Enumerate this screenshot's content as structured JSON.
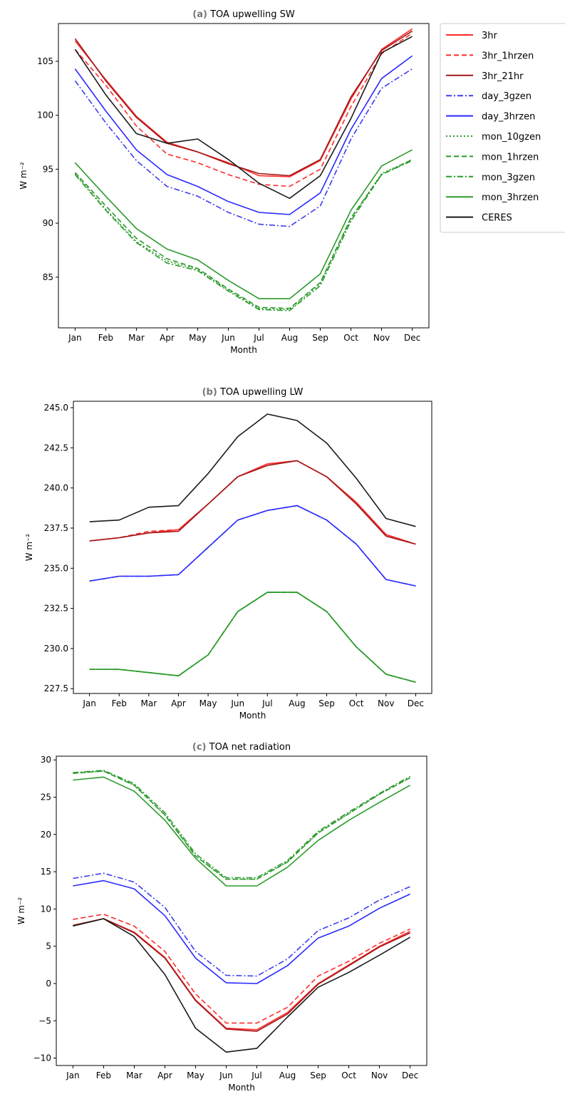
{
  "chart_data": [
    {
      "type": "line",
      "title_prefix": "(a)",
      "title": "TOA upwelling SW",
      "xlabel": "Month",
      "ylabel": "W m⁻²",
      "categories": [
        "Jan",
        "Feb",
        "Mar",
        "Apr",
        "May",
        "Jun",
        "Jul",
        "Aug",
        "Sep",
        "Oct",
        "Nov",
        "Dec"
      ],
      "ylim": [
        80.3,
        108.5
      ],
      "yticks": [
        85,
        90,
        95,
        100,
        105
      ],
      "yticklabels": [
        "85",
        "90",
        "95",
        "100",
        "105"
      ],
      "grid": false,
      "legend": {
        "placement": "outside-right",
        "entries": [
          "3hr",
          "3hr_1hrzen",
          "3hr_21hr",
          "day_3gzen",
          "day_3hrzen",
          "mon_10gzen",
          "mon_1hrzen",
          "mon_3gzen",
          "mon_3hrzen",
          "CERES"
        ]
      },
      "series": [
        {
          "name": "3hr",
          "color": "#ff2a2a",
          "dash": "solid",
          "values": [
            106.9,
            103.3,
            99.9,
            97.5,
            96.6,
            95.6,
            94.4,
            94.3,
            95.8,
            101.5,
            106.1,
            108.0
          ]
        },
        {
          "name": "3hr_1hrzen",
          "color": "#ff2a2a",
          "dash": "dashed",
          "values": [
            106.1,
            102.8,
            99.0,
            96.4,
            95.6,
            94.5,
            93.6,
            93.4,
            95.0,
            100.8,
            105.7,
            107.6
          ]
        },
        {
          "name": "3hr_21hr",
          "color": "#a01818",
          "dash": "solid",
          "values": [
            107.1,
            103.2,
            99.8,
            97.4,
            96.6,
            95.5,
            94.6,
            94.4,
            95.9,
            101.7,
            106.0,
            107.8
          ]
        },
        {
          "name": "day_3gzen",
          "color": "#3c3cf0",
          "dash": "dashdot",
          "values": [
            103.2,
            99.3,
            95.8,
            93.4,
            92.5,
            91.0,
            89.9,
            89.7,
            91.6,
            97.8,
            102.5,
            104.3
          ]
        },
        {
          "name": "day_3hrzen",
          "color": "#2a2aff",
          "dash": "solid",
          "values": [
            104.3,
            100.4,
            96.8,
            94.5,
            93.4,
            92.0,
            91.0,
            90.8,
            92.8,
            98.7,
            103.4,
            105.5
          ]
        },
        {
          "name": "mon_10gzen",
          "color": "#2a9a2a",
          "dash": "dotted",
          "values": [
            94.6,
            91.3,
            88.3,
            86.5,
            85.7,
            83.8,
            82.1,
            82.0,
            84.4,
            90.4,
            94.6,
            95.9
          ]
        },
        {
          "name": "mon_1hrzen",
          "color": "#2a9a2a",
          "dash": "dashed",
          "values": [
            94.7,
            91.6,
            88.6,
            86.7,
            85.8,
            83.9,
            82.2,
            82.1,
            84.5,
            90.5,
            94.5,
            95.9
          ]
        },
        {
          "name": "mon_3gzen",
          "color": "#2a9a2a",
          "dash": "dashdot",
          "values": [
            94.5,
            91.2,
            88.2,
            86.3,
            85.6,
            83.7,
            82.0,
            81.9,
            84.2,
            90.2,
            94.5,
            95.8
          ]
        },
        {
          "name": "mon_3hrzen",
          "color": "#2a9a2a",
          "dash": "solid",
          "values": [
            95.6,
            92.5,
            89.5,
            87.6,
            86.6,
            84.7,
            83.0,
            83.0,
            85.3,
            91.2,
            95.3,
            96.8
          ]
        },
        {
          "name": "CERES",
          "color": "#1a1a1a",
          "dash": "solid",
          "values": [
            106.1,
            101.9,
            98.3,
            97.4,
            97.8,
            95.9,
            93.7,
            92.3,
            94.4,
            99.7,
            105.8,
            107.3
          ]
        }
      ]
    },
    {
      "type": "line",
      "title_prefix": "(b)",
      "title": "TOA upwelling LW",
      "xlabel": "Month",
      "ylabel": "W m⁻²",
      "categories": [
        "Jan",
        "Feb",
        "Mar",
        "Apr",
        "May",
        "Jun",
        "Jul",
        "Aug",
        "Sep",
        "Oct",
        "Nov",
        "Dec"
      ],
      "ylim": [
        227.2,
        245.4
      ],
      "yticks": [
        227.5,
        230.0,
        232.5,
        235.0,
        237.5,
        240.0,
        242.5,
        245.0
      ],
      "yticklabels": [
        "227.5",
        "230.0",
        "232.5",
        "235.0",
        "237.5",
        "240.0",
        "242.5",
        "245.0"
      ],
      "grid": false,
      "series": [
        {
          "name": "3hr",
          "color": "#ff2a2a",
          "dash": "solid",
          "values": [
            236.7,
            236.9,
            237.2,
            237.4,
            239.0,
            240.7,
            241.5,
            241.7,
            240.7,
            239.1,
            237.1,
            236.5
          ]
        },
        {
          "name": "3hr_1hrzen",
          "color": "#ff2a2a",
          "dash": "dashed",
          "values": [
            236.7,
            236.9,
            237.3,
            237.4,
            239.0,
            240.7,
            241.5,
            241.7,
            240.7,
            239.1,
            237.1,
            236.5
          ]
        },
        {
          "name": "3hr_21hr",
          "color": "#a01818",
          "dash": "solid",
          "values": [
            236.7,
            236.9,
            237.2,
            237.3,
            239.0,
            240.7,
            241.4,
            241.7,
            240.7,
            239.0,
            237.0,
            236.5
          ]
        },
        {
          "name": "day_3gzen",
          "color": "#3c3cf0",
          "dash": "dashdot",
          "values": [
            234.2,
            234.5,
            234.5,
            234.6,
            236.3,
            238.0,
            238.6,
            238.9,
            238.0,
            236.5,
            234.3,
            233.9
          ]
        },
        {
          "name": "day_3hrzen",
          "color": "#2a2aff",
          "dash": "solid",
          "values": [
            234.2,
            234.5,
            234.5,
            234.6,
            236.3,
            238.0,
            238.6,
            238.9,
            238.0,
            236.5,
            234.3,
            233.9
          ]
        },
        {
          "name": "mon_10gzen",
          "color": "#2a9a2a",
          "dash": "dotted",
          "values": [
            228.7,
            228.7,
            228.5,
            228.3,
            229.6,
            232.3,
            233.5,
            233.5,
            232.3,
            230.1,
            228.4,
            227.9
          ]
        },
        {
          "name": "mon_1hrzen",
          "color": "#2a9a2a",
          "dash": "dashed",
          "values": [
            228.7,
            228.7,
            228.5,
            228.3,
            229.6,
            232.3,
            233.5,
            233.5,
            232.3,
            230.1,
            228.4,
            227.9
          ]
        },
        {
          "name": "mon_3gzen",
          "color": "#2a9a2a",
          "dash": "dashdot",
          "values": [
            228.7,
            228.7,
            228.5,
            228.3,
            229.6,
            232.3,
            233.5,
            233.5,
            232.3,
            230.1,
            228.4,
            227.9
          ]
        },
        {
          "name": "mon_3hrzen",
          "color": "#2a9a2a",
          "dash": "solid",
          "values": [
            228.7,
            228.7,
            228.5,
            228.3,
            229.6,
            232.3,
            233.5,
            233.5,
            232.3,
            230.1,
            228.4,
            227.9
          ]
        },
        {
          "name": "CERES",
          "color": "#1a1a1a",
          "dash": "solid",
          "values": [
            237.9,
            238.0,
            238.8,
            238.9,
            240.9,
            243.2,
            244.6,
            244.2,
            242.8,
            240.6,
            238.1,
            237.6
          ]
        }
      ]
    },
    {
      "type": "line",
      "title_prefix": "(c)",
      "title": "TOA net radiation",
      "xlabel": "Month",
      "ylabel": "W m⁻²",
      "categories": [
        "Jan",
        "Feb",
        "Mar",
        "Apr",
        "May",
        "Jun",
        "Jul",
        "Aug",
        "Sep",
        "Oct",
        "Nov",
        "Dec"
      ],
      "ylim": [
        -11,
        30.5
      ],
      "yticks": [
        -10,
        -5,
        0,
        5,
        10,
        15,
        20,
        25,
        30
      ],
      "yticklabels": [
        "−10",
        "−5",
        "0",
        "5",
        "10",
        "15",
        "20",
        "25",
        "30"
      ],
      "grid": false,
      "series": [
        {
          "name": "3hr",
          "color": "#ff2a2a",
          "dash": "solid",
          "values": [
            7.8,
            8.7,
            6.9,
            3.5,
            -2.2,
            -6.0,
            -6.2,
            -3.9,
            0.0,
            2.5,
            5.0,
            7.0
          ]
        },
        {
          "name": "3hr_1hrzen",
          "color": "#ff2a2a",
          "dash": "dashed",
          "values": [
            8.6,
            9.3,
            7.7,
            4.3,
            -1.4,
            -5.3,
            -5.3,
            -3.2,
            1.0,
            3.0,
            5.4,
            7.3
          ]
        },
        {
          "name": "3hr_21hr",
          "color": "#a01818",
          "dash": "solid",
          "values": [
            7.8,
            8.7,
            6.8,
            3.4,
            -2.3,
            -6.1,
            -6.4,
            -4.1,
            -0.1,
            2.4,
            4.9,
            6.8
          ]
        },
        {
          "name": "day_3gzen",
          "color": "#3c3cf0",
          "dash": "dashdot",
          "values": [
            14.1,
            14.8,
            13.6,
            10.2,
            4.3,
            1.1,
            1.0,
            3.3,
            7.1,
            8.8,
            11.2,
            13.0
          ]
        },
        {
          "name": "day_3hrzen",
          "color": "#2a2aff",
          "dash": "solid",
          "values": [
            13.1,
            13.8,
            12.7,
            9.1,
            3.4,
            0.1,
            0.0,
            2.4,
            6.1,
            7.7,
            10.1,
            12.0
          ]
        },
        {
          "name": "mon_10gzen",
          "color": "#2a9a2a",
          "dash": "dotted",
          "values": [
            28.2,
            28.5,
            26.6,
            22.6,
            17.1,
            14.0,
            14.0,
            16.3,
            20.2,
            22.8,
            25.4,
            27.6
          ]
        },
        {
          "name": "mon_1hrzen",
          "color": "#2a9a2a",
          "dash": "dashed",
          "values": [
            28.2,
            28.5,
            26.6,
            22.6,
            17.1,
            14.0,
            14.0,
            16.3,
            20.2,
            22.8,
            25.4,
            27.6
          ]
        },
        {
          "name": "mon_3gzen",
          "color": "#2a9a2a",
          "dash": "dashdot",
          "values": [
            28.3,
            28.6,
            26.8,
            22.9,
            17.4,
            14.2,
            14.2,
            16.5,
            20.4,
            23.0,
            25.5,
            27.8
          ]
        },
        {
          "name": "mon_3hrzen",
          "color": "#2a9a2a",
          "dash": "solid",
          "values": [
            27.3,
            27.7,
            25.8,
            21.9,
            16.8,
            13.1,
            13.1,
            15.6,
            19.2,
            21.9,
            24.3,
            26.6
          ]
        },
        {
          "name": "CERES",
          "color": "#1a1a1a",
          "dash": "solid",
          "values": [
            7.7,
            8.7,
            6.3,
            1.2,
            -6.0,
            -9.2,
            -8.7,
            -4.5,
            -0.5,
            1.5,
            3.8,
            6.2
          ]
        }
      ]
    }
  ]
}
